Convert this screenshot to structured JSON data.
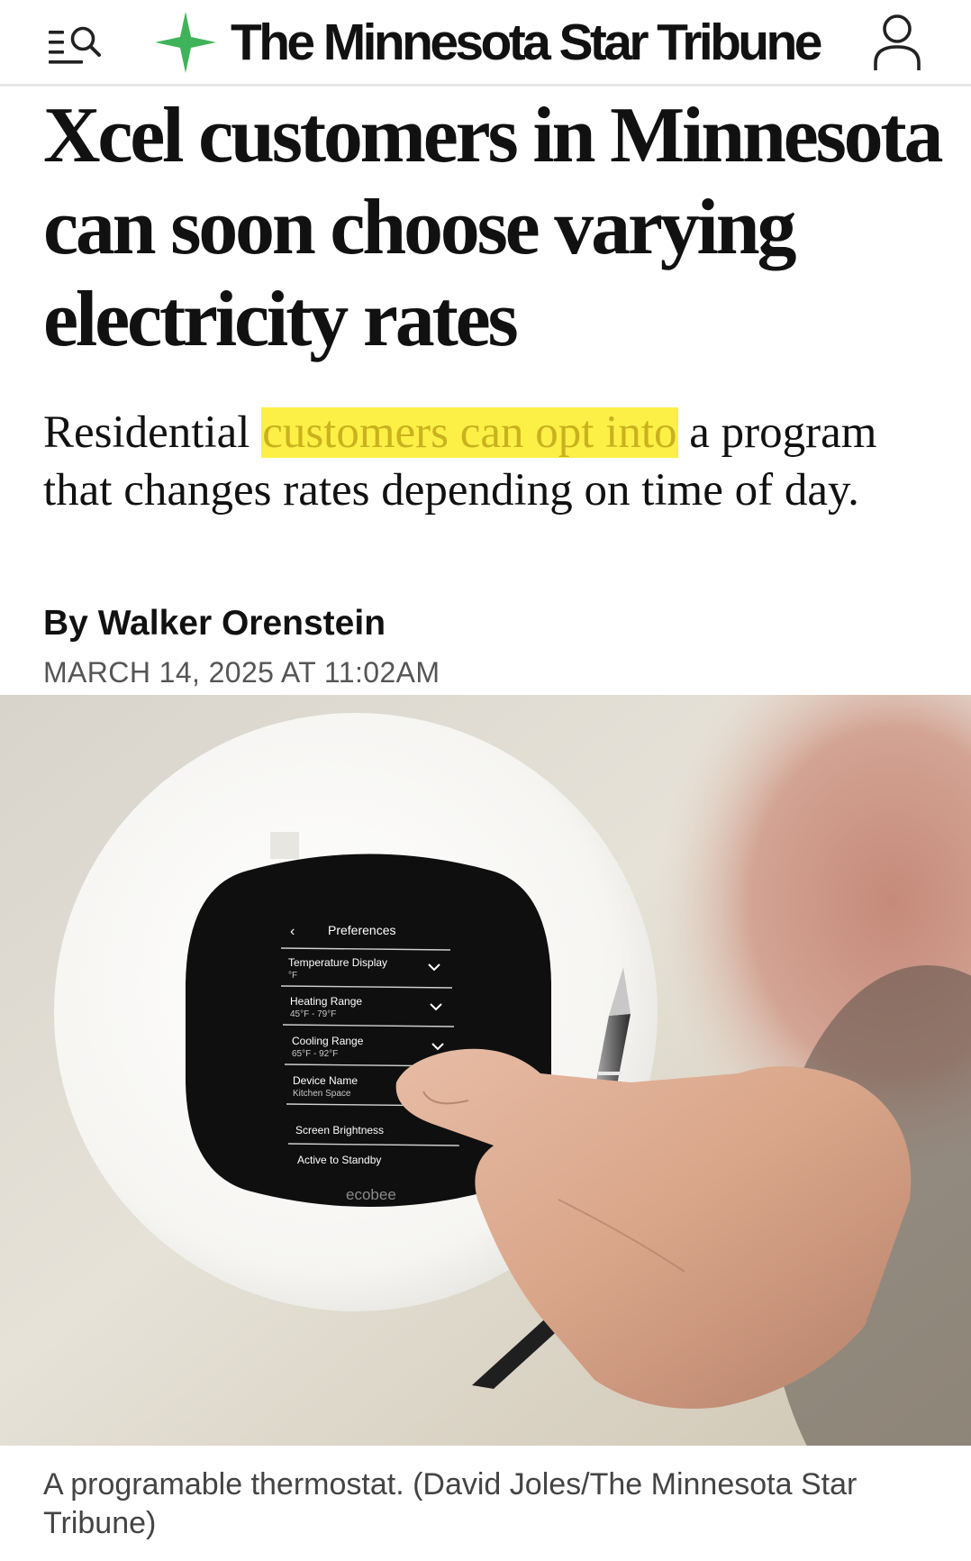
{
  "header": {
    "menu_search_icon": "menu-search-icon",
    "brand_name": "The Minnesota Star Tribune",
    "brand_icon": "star-logo-icon",
    "account_icon": "account-person-icon",
    "brand_green": "#3fb35a"
  },
  "article": {
    "headline": "Xcel customers in Minnesota can soon choose varying electricity rates",
    "dek": {
      "before": "Residential ",
      "highlight": "customers can opt into",
      "after": " a program that changes rates depending on time of day."
    },
    "highlight_color": "#fcf046",
    "byline": "By Walker Orenstein",
    "timestamp": "MARCH 14, 2025 AT 11:02AM"
  },
  "photo": {
    "thermostat_screen": {
      "title": "Preferences",
      "back_icon": "chevron-left-icon",
      "rows": [
        {
          "label": "Temperature Display",
          "value": "°F",
          "icon": "chevron-down-icon"
        },
        {
          "label": "Heating Range",
          "value": "45°F - 79°F",
          "icon": "chevron-down-icon"
        },
        {
          "label": "Cooling Range",
          "value": "65°F - 92°F",
          "icon": "chevron-down-icon"
        },
        {
          "label": "Device Name",
          "value": "Kitchen Space",
          "icon": ""
        },
        {
          "label": "Screen Brightness",
          "value": "",
          "icon": ""
        },
        {
          "label": "Active to Standby",
          "value": "",
          "icon": ""
        }
      ],
      "brand": "ecobee"
    },
    "caption": "A programable thermostat. (David Joles/The Minnesota Star Tribune)"
  }
}
